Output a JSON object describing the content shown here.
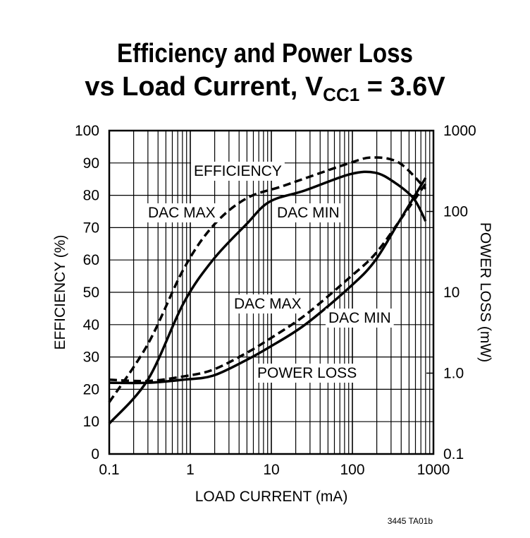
{
  "chart_data": {
    "type": "line",
    "title_line1": "Efficiency and Power Loss",
    "title_line2_prefix": "vs Load Current, V",
    "title_line2_sub": "CC1",
    "title_line2_suffix": " = 3.6V",
    "xlabel": "LOAD CURRENT (mA)",
    "ylabel": "EFFICIENCY (%)",
    "y2label": "POWER LOSS (mW)",
    "xscale": "log",
    "xlim": [
      0.1,
      1000
    ],
    "ylim": [
      0,
      100
    ],
    "y2scale": "log",
    "y2lim": [
      0.1,
      1000
    ],
    "grid": true,
    "x_ticks": [
      "0.1",
      "1",
      "10",
      "100",
      "1000"
    ],
    "y_ticks": [
      "0",
      "10",
      "20",
      "30",
      "40",
      "50",
      "60",
      "70",
      "80",
      "90",
      "100"
    ],
    "y2_ticks": [
      "0.1",
      "1.0",
      "10",
      "100",
      "1000"
    ],
    "annotations": {
      "efficiency": "EFFICIENCY",
      "eff_dac_max": "DAC MAX",
      "eff_dac_min": "DAC MIN",
      "pl_dac_max": "DAC MAX",
      "pl_dac_min": "DAC MIN",
      "power_loss": "POWER LOSS"
    },
    "series": [
      {
        "label_ref": "efficiency DAC MAX",
        "axis": "left",
        "style": "dashed",
        "x": [
          0.1,
          0.3,
          0.82,
          1.9,
          4.9,
          14.4,
          93,
          180,
          380,
          800
        ],
        "y": [
          16,
          34,
          57,
          70.5,
          79,
          83,
          90,
          91.7,
          90,
          82
        ]
      },
      {
        "label_ref": "efficiency DAC MIN",
        "axis": "left",
        "style": "solid",
        "x": [
          0.1,
          0.3,
          0.82,
          1.9,
          4.9,
          9.5,
          26,
          93,
          190,
          330,
          570,
          800
        ],
        "y": [
          9.4,
          23,
          46.5,
          60,
          71,
          78,
          81.5,
          86.5,
          87,
          84,
          79,
          72
        ]
      },
      {
        "label_ref": "power loss DAC MAX",
        "axis": "right",
        "style": "dashed",
        "x": [
          0.1,
          0.3,
          0.82,
          1.9,
          4.9,
          9.5,
          26,
          93,
          190,
          380,
          800
        ],
        "y": [
          0.83,
          0.8,
          0.91,
          1.1,
          1.77,
          2.65,
          5.2,
          15.3,
          29.6,
          76,
          220
        ]
      },
      {
        "label_ref": "power loss DAC MIN",
        "axis": "right",
        "style": "solid",
        "x": [
          0.1,
          0.3,
          0.82,
          1.9,
          4.9,
          9.5,
          26,
          93,
          190,
          380,
          800
        ],
        "y": [
          0.76,
          0.76,
          0.83,
          0.93,
          1.45,
          2.1,
          3.97,
          11.6,
          24.5,
          76,
          260
        ]
      }
    ],
    "footer": "3445 TA01b"
  }
}
